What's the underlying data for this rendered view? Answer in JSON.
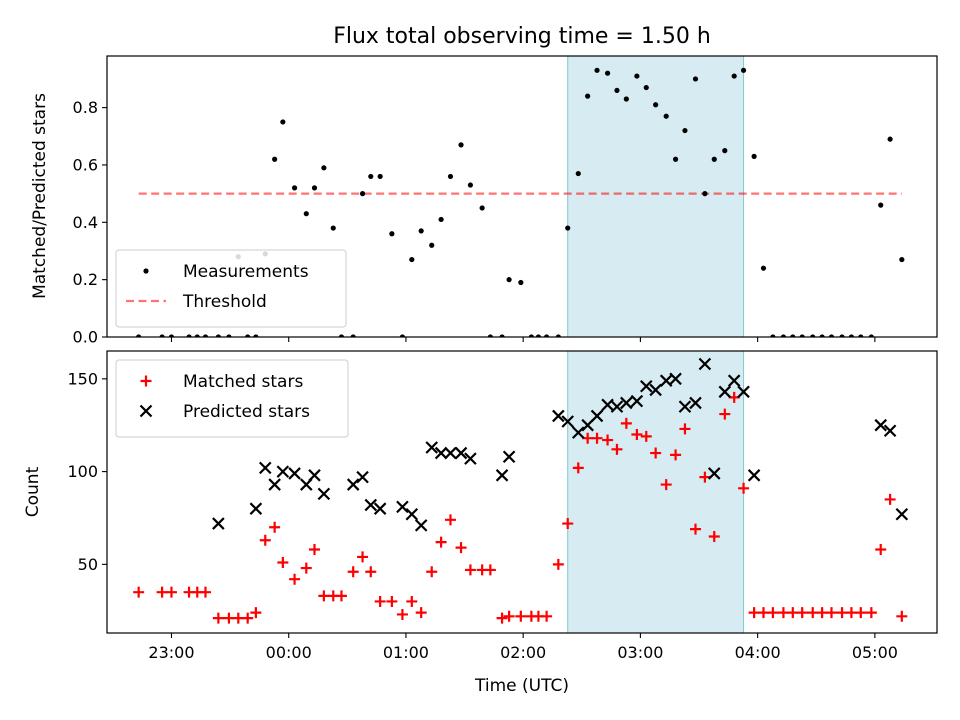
{
  "chart_data": [
    {
      "type": "scatter",
      "title": "Flux total observing time = 1.50 h",
      "xlabel": "",
      "ylabel": "Matched/Predicted stars",
      "ylim": [
        0,
        0.98
      ],
      "yticks": [
        0.0,
        0.2,
        0.4,
        0.6,
        0.8
      ],
      "ytick_labels": [
        "0.0",
        "0.2",
        "0.4",
        "0.6",
        "0.8"
      ],
      "xlim_hours": [
        -1.55,
        5.53
      ],
      "shaded_region": {
        "start": 2.38,
        "end": 3.88,
        "color": "#add8e6"
      },
      "threshold": {
        "label": "Threshold",
        "value": 0.5,
        "x_range": [
          -1.28,
          5.23
        ],
        "color": "#ff0000"
      },
      "legend_position": "lower-left",
      "series": [
        {
          "name": "Measurements",
          "color": "#000000",
          "marker": "dot",
          "x": [
            -1.28,
            -1.08,
            -1.0,
            -0.85,
            -0.78,
            -0.71,
            -0.6,
            -0.51,
            -0.43,
            -0.35,
            -0.28,
            -0.2,
            -0.12,
            -0.05,
            0.05,
            0.15,
            0.22,
            0.3,
            0.38,
            0.45,
            0.55,
            0.63,
            0.7,
            0.78,
            0.88,
            0.97,
            1.05,
            1.13,
            1.22,
            1.3,
            1.38,
            1.47,
            1.55,
            1.65,
            1.72,
            1.82,
            1.88,
            1.98,
            2.07,
            2.13,
            2.2,
            2.3,
            2.38,
            2.47,
            2.55,
            2.63,
            2.72,
            2.8,
            2.88,
            2.97,
            3.05,
            3.13,
            3.22,
            3.3,
            3.38,
            3.47,
            3.55,
            3.63,
            3.72,
            3.8,
            3.88,
            3.97,
            4.05,
            4.13,
            4.22,
            4.3,
            4.38,
            4.47,
            4.55,
            4.63,
            4.72,
            4.8,
            4.88,
            4.97,
            5.05,
            5.13,
            5.23
          ],
          "y": [
            0,
            0,
            0,
            0,
            0,
            0,
            0,
            0,
            0.28,
            0,
            0,
            0.29,
            0.62,
            0.75,
            0.52,
            0.43,
            0.52,
            0.59,
            0.38,
            0,
            0,
            0.5,
            0.56,
            0.56,
            0.36,
            0,
            0.27,
            0.37,
            0.32,
            0.41,
            0.56,
            0.67,
            0.53,
            0.45,
            0,
            0,
            0.2,
            0.19,
            0,
            0,
            0,
            0,
            0.38,
            0.57,
            0.84,
            0.93,
            0.92,
            0.86,
            0.83,
            0.91,
            0.87,
            0.81,
            0.77,
            0.62,
            0.72,
            0.9,
            0.5,
            0.62,
            0.65,
            0.91,
            0.93,
            0.63,
            0.24,
            0,
            0,
            0,
            0,
            0,
            0,
            0,
            0,
            0,
            0,
            0,
            0.46,
            0.69,
            0.27
          ]
        }
      ]
    },
    {
      "type": "scatter",
      "title": "",
      "xlabel": "Time (UTC)",
      "ylabel": "Count",
      "ylim": [
        13,
        165
      ],
      "yticks": [
        50,
        100,
        150
      ],
      "ytick_labels": [
        "50",
        "100",
        "150"
      ],
      "xlim_hours": [
        -1.55,
        5.53
      ],
      "xticks_hours": [
        -1,
        0,
        1,
        2,
        3,
        4,
        5
      ],
      "xtick_labels": [
        "23:00",
        "00:00",
        "01:00",
        "02:00",
        "03:00",
        "04:00",
        "05:00"
      ],
      "shaded_region": {
        "start": 2.38,
        "end": 3.88,
        "color": "#add8e6"
      },
      "legend_position": "upper-left",
      "series": [
        {
          "name": "Matched stars",
          "color": "#ff0000",
          "marker": "plus",
          "x": [
            -1.28,
            -1.08,
            -1.0,
            -0.85,
            -0.78,
            -0.71,
            -0.6,
            -0.51,
            -0.43,
            -0.35,
            -0.28,
            -0.2,
            -0.12,
            -0.05,
            0.05,
            0.15,
            0.22,
            0.3,
            0.38,
            0.45,
            0.55,
            0.63,
            0.7,
            0.78,
            0.88,
            0.97,
            1.05,
            1.13,
            1.22,
            1.3,
            1.38,
            1.47,
            1.55,
            1.65,
            1.72,
            1.82,
            1.88,
            1.98,
            2.07,
            2.13,
            2.2,
            2.3,
            2.38,
            2.47,
            2.55,
            2.63,
            2.72,
            2.8,
            2.88,
            2.97,
            3.05,
            3.13,
            3.22,
            3.3,
            3.38,
            3.47,
            3.55,
            3.63,
            3.72,
            3.8,
            3.88,
            3.97,
            4.05,
            4.13,
            4.22,
            4.3,
            4.38,
            4.47,
            4.55,
            4.63,
            4.72,
            4.8,
            4.88,
            4.97,
            5.05,
            5.13,
            5.23
          ],
          "y": [
            35,
            35,
            35,
            35,
            35,
            35,
            21,
            21,
            21,
            21,
            24,
            63,
            70,
            51,
            42,
            48,
            58,
            33,
            33,
            33,
            46,
            54,
            46,
            30,
            30,
            23,
            30,
            24,
            46,
            62,
            74,
            59,
            47,
            47,
            47,
            21,
            22,
            22,
            22,
            22,
            22,
            50,
            72,
            102,
            118,
            118,
            117,
            112,
            126,
            120,
            119,
            110,
            93,
            109,
            123,
            69,
            97,
            65,
            131,
            140,
            91,
            24,
            24,
            24,
            24,
            24,
            24,
            24,
            24,
            24,
            24,
            24,
            24,
            24,
            58,
            85,
            22
          ]
        },
        {
          "name": "Predicted stars",
          "color": "#000000",
          "marker": "cross",
          "x": [
            -0.6,
            -0.28,
            -0.2,
            -0.12,
            -0.05,
            0.05,
            0.15,
            0.22,
            0.3,
            0.55,
            0.63,
            0.7,
            0.78,
            0.97,
            1.05,
            1.13,
            1.22,
            1.3,
            1.38,
            1.47,
            1.55,
            1.82,
            1.88,
            2.3,
            2.38,
            2.47,
            2.55,
            2.63,
            2.72,
            2.8,
            2.88,
            2.97,
            3.05,
            3.13,
            3.22,
            3.3,
            3.38,
            3.47,
            3.55,
            3.63,
            3.72,
            3.8,
            3.88,
            3.97,
            5.05,
            5.13,
            5.23
          ],
          "y": [
            72,
            80,
            102,
            93,
            100,
            99,
            93,
            98,
            88,
            93,
            97,
            82,
            80,
            81,
            77,
            71,
            113,
            110,
            110,
            110,
            107,
            98,
            108,
            130,
            127,
            121,
            125,
            130,
            136,
            135,
            137,
            138,
            146,
            144,
            149,
            150,
            135,
            137,
            158,
            99,
            143,
            149,
            143,
            98,
            125,
            122,
            77
          ]
        }
      ]
    }
  ]
}
